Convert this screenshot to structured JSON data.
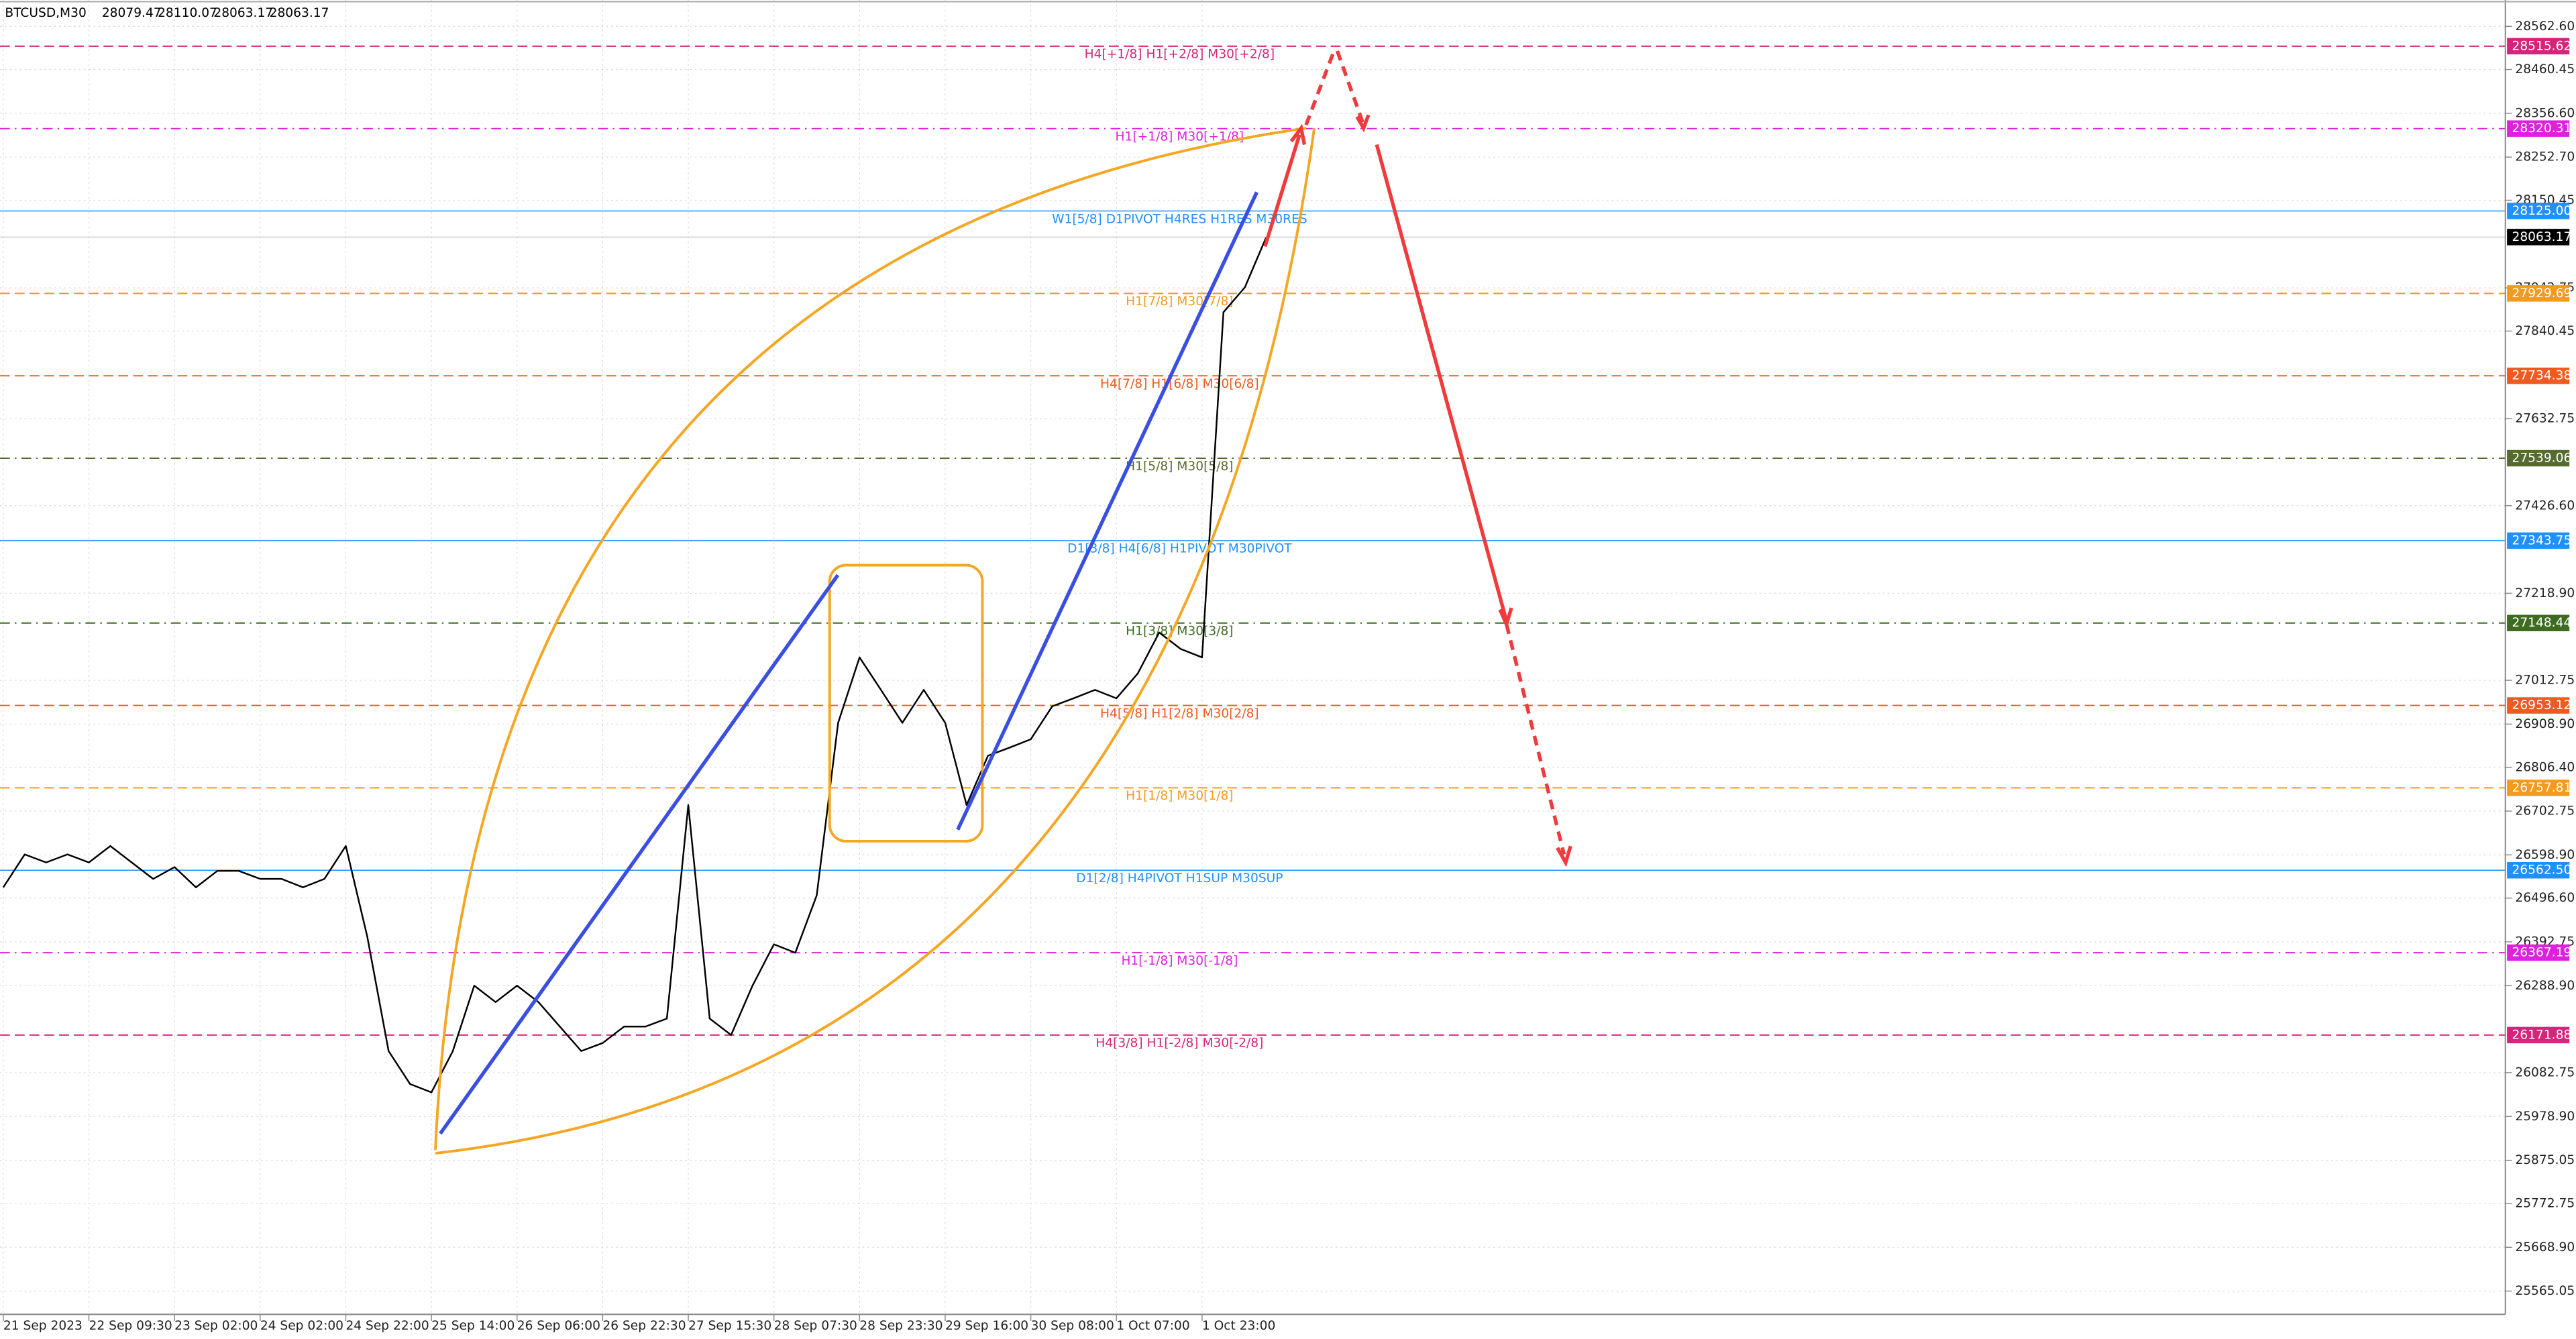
{
  "chart_data": {
    "type": "line",
    "title": "BTCUSD,M30",
    "ohlc": [
      28079.47,
      28110.07,
      28063.17,
      28063.17
    ],
    "last": 28063.17,
    "ylim": [
      25510,
      28625
    ],
    "grid": true,
    "yticks": [
      {
        "value": 28562.6,
        "label": "28562.60"
      },
      {
        "value": 28460.45,
        "label": "28460.45"
      },
      {
        "value": 28356.6,
        "label": "28356.60"
      },
      {
        "value": 28252.7,
        "label": "28252.70"
      },
      {
        "value": 28150.45,
        "label": "28150.45"
      },
      27942.75,
      {
        "value": 27840.45,
        "label": "27840.45"
      },
      27632.75,
      {
        "value": 27426.6,
        "label": "27426.60"
      },
      {
        "value": 27218.9,
        "label": "27218.90"
      },
      27012.75,
      {
        "value": 26908.9,
        "label": "26908.90"
      },
      {
        "value": 26806.4,
        "label": "26806.40"
      },
      26702.75,
      {
        "value": 26598.9,
        "label": "26598.90"
      },
      {
        "value": 26496.6,
        "label": "26496.60"
      },
      26392.75,
      {
        "value": 26288.9,
        "label": "26288.90"
      },
      26082.75,
      {
        "value": 25978.9,
        "label": "25978.90"
      },
      25875.05,
      25772.75,
      {
        "value": 25668.9,
        "label": "25668.90"
      },
      25565.05
    ],
    "categories": [
      "21 Sep 2023",
      null,
      null,
      null,
      "22 Sep 09:30",
      null,
      null,
      null,
      "23 Sep 02:00",
      null,
      null,
      null,
      "24 Sep 02:00",
      null,
      null,
      null,
      "24 Sep 22:00",
      null,
      null,
      null,
      "25 Sep 14:00",
      null,
      null,
      null,
      "26 Sep 06:00",
      null,
      null,
      null,
      "26 Sep 22:30",
      null,
      null,
      null,
      "27 Sep 15:30",
      null,
      null,
      null,
      "28 Sep 07:30",
      null,
      null,
      null,
      "28 Sep 23:30",
      null,
      null,
      null,
      "29 Sep 16:00",
      null,
      null,
      null,
      "30 Sep 08:00",
      null,
      null,
      null,
      "1 Oct 07:00",
      null,
      null,
      null,
      "1 Oct 23:00",
      null,
      null,
      null
    ],
    "color": "#000000",
    "values": [
      26522,
      26600,
      26581,
      26600,
      26581,
      26620,
      26581,
      26542,
      26570,
      26522,
      26561,
      26561,
      26542,
      26542,
      26522,
      26542,
      26620,
      26406,
      26134,
      26056,
      26036,
      26134,
      26289,
      26250,
      26289,
      26250,
      26192,
      26134,
      26153,
      26192,
      26192,
      26211,
      26717,
      26211,
      26172,
      26289,
      26387,
      26367,
      26503,
      26912,
      27067,
      26990,
      26912,
      26990,
      26912,
      26717,
      26834,
      26853,
      26873,
      26951,
      26970,
      26990,
      26970,
      27029,
      27126,
      27087,
      27067,
      27885,
      27944,
      28063
    ],
    "levels": [
      {
        "value": 28515.62,
        "label": "H4[+1/8] H1[+2/8] M30[+2/8]",
        "color": "#d6247a",
        "dash": "dashed"
      },
      {
        "value": 28320.31,
        "label": "H1[+1/8] M30[+1/8]",
        "color": "#e020e0",
        "dash": "dashdot"
      },
      {
        "value": 28125,
        "price_label": "28125.00",
        "label": "W1[5/8] D1PIVOT H4RES H1RES M30RES",
        "color": "#1e90ff",
        "dash": "solid"
      },
      {
        "value": 27929.69,
        "label": "H1[7/8] M30[7/8]",
        "color": "#f59a1c",
        "dash": "dashed"
      },
      {
        "value": 27734.38,
        "label": "H4[7/8] H1[6/8] M30[6/8]",
        "color": "#f05a1e",
        "dash": "dashed"
      },
      {
        "value": 27539.06,
        "label": "H1[5/8] M30[5/8]",
        "color": "#556b2f",
        "dash": "dashdot"
      },
      {
        "value": 27343.75,
        "label": "D1[3/8] H4[6/8] H1PIVOT M30PIVOT",
        "color": "#1e90ff",
        "dash": "solid"
      },
      {
        "value": 27148.44,
        "label": "H1[3/8] M30[3/8]",
        "color": "#3d6b1f",
        "dash": "dashdot"
      },
      {
        "value": 26953.12,
        "label": "H4[5/8] H1[2/8] M30[2/8]",
        "color": "#f05a1e",
        "dash": "dashed"
      },
      {
        "value": 26757.81,
        "label": "H1[1/8] M30[1/8]",
        "color": "#f59a1c",
        "dash": "dashed"
      },
      {
        "value": 26562.5,
        "price_label": "26562.50",
        "label": "D1[2/8] H4PIVOT H1SUP M30SUP",
        "color": "#1e90ff",
        "dash": "solid"
      },
      {
        "value": 26367.19,
        "label": "H1[-1/8] M30[-1/8]",
        "color": "#e020e0",
        "dash": "dashdot"
      },
      {
        "value": 26171.88,
        "label": "H4[3/8] H1[-2/8] M30[-2/8]",
        "color": "#d6247a",
        "dash": "dashed"
      }
    ]
  }
}
